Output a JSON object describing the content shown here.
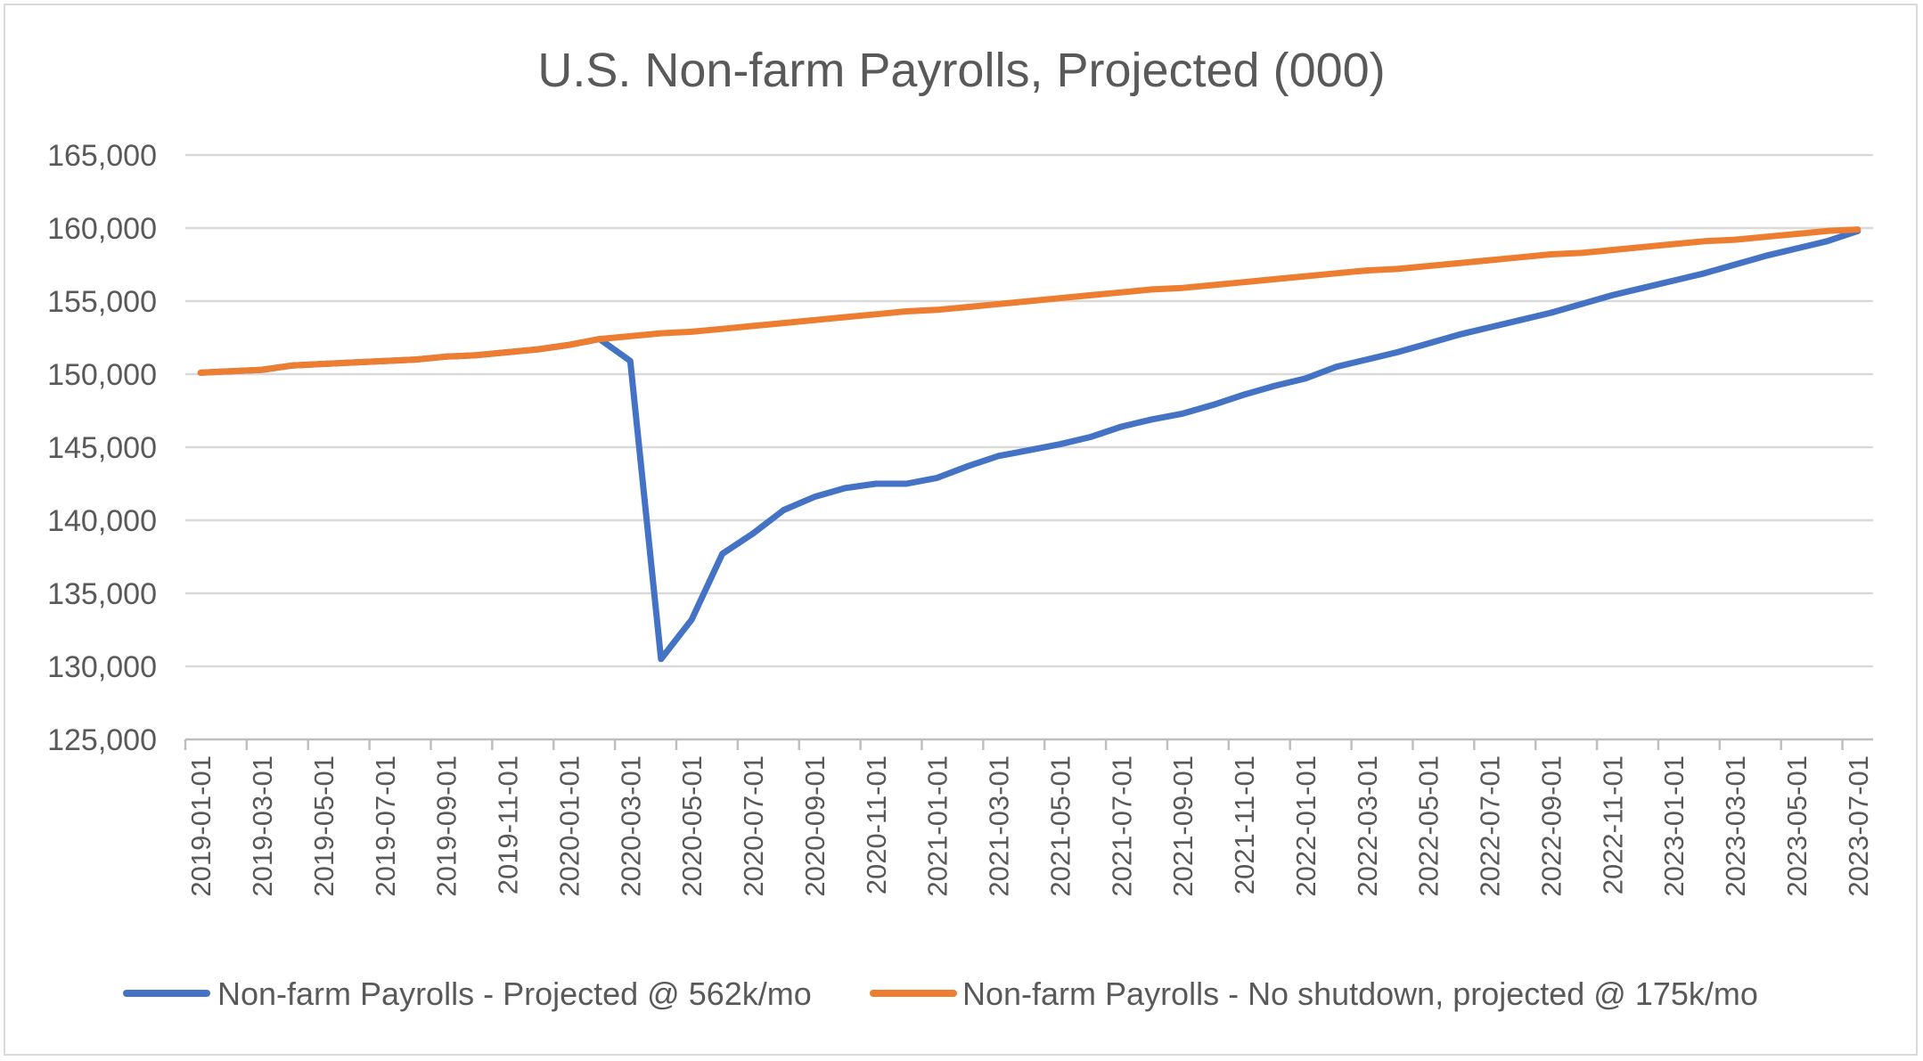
{
  "chart_data": {
    "type": "line",
    "title": "U.S. Non-farm Payrolls, Projected (000)",
    "xlabel": "",
    "ylabel": "",
    "ylim": [
      125000,
      165000
    ],
    "yticks": [
      "125,000",
      "130,000",
      "135,000",
      "140,000",
      "145,000",
      "150,000",
      "155,000",
      "160,000",
      "165,000"
    ],
    "ytick_values": [
      125000,
      130000,
      135000,
      140000,
      145000,
      150000,
      155000,
      160000,
      165000
    ],
    "xtick_labels": [
      "2019-01-01",
      "2019-03-01",
      "2019-05-01",
      "2019-07-01",
      "2019-09-01",
      "2019-11-01",
      "2020-01-01",
      "2020-03-01",
      "2020-05-01",
      "2020-07-01",
      "2020-09-01",
      "2020-11-01",
      "2021-01-01",
      "2021-03-01",
      "2021-05-01",
      "2021-07-01",
      "2021-09-01",
      "2021-11-01",
      "2022-01-01",
      "2022-03-01",
      "2022-05-01",
      "2022-07-01",
      "2022-09-01",
      "2022-11-01",
      "2023-01-01",
      "2023-03-01",
      "2023-05-01",
      "2023-07-01"
    ],
    "grid": true,
    "legend_position": "bottom",
    "x": [
      "2019-01-01",
      "2019-02-01",
      "2019-03-01",
      "2019-04-01",
      "2019-05-01",
      "2019-06-01",
      "2019-07-01",
      "2019-08-01",
      "2019-09-01",
      "2019-10-01",
      "2019-11-01",
      "2019-12-01",
      "2020-01-01",
      "2020-02-01",
      "2020-03-01",
      "2020-04-01",
      "2020-05-01",
      "2020-06-01",
      "2020-07-01",
      "2020-08-01",
      "2020-09-01",
      "2020-10-01",
      "2020-11-01",
      "2020-12-01",
      "2021-01-01",
      "2021-02-01",
      "2021-03-01",
      "2021-04-01",
      "2021-05-01",
      "2021-06-01",
      "2021-07-01",
      "2021-08-01",
      "2021-09-01",
      "2021-10-01",
      "2021-11-01",
      "2021-12-01",
      "2022-01-01",
      "2022-02-01",
      "2022-03-01",
      "2022-04-01",
      "2022-05-01",
      "2022-06-01",
      "2022-07-01",
      "2022-08-01",
      "2022-09-01",
      "2022-10-01",
      "2022-11-01",
      "2022-12-01",
      "2023-01-01",
      "2023-02-01",
      "2023-03-01",
      "2023-04-01",
      "2023-05-01",
      "2023-06-01",
      "2023-07-01"
    ],
    "series": [
      {
        "name": "Non-farm Payrolls - Projected @ 562k/mo",
        "color": "#4472C4",
        "values": [
          150100,
          150200,
          150300,
          150600,
          150700,
          150800,
          150900,
          151000,
          151200,
          151300,
          151500,
          151700,
          152000,
          152400,
          150900,
          130500,
          133200,
          137700,
          139100,
          140700,
          141600,
          142200,
          142500,
          142500,
          142900,
          143700,
          144400,
          144800,
          145200,
          145700,
          146400,
          146900,
          147300,
          147900,
          148600,
          149200,
          149700,
          150500,
          151000,
          151500,
          152100,
          152700,
          153200,
          153700,
          154200,
          154800,
          155400,
          155900,
          156400,
          156900,
          157500,
          158100,
          158600,
          159100,
          159800
        ]
      },
      {
        "name": "Non-farm Payrolls - No shutdown, projected @ 175k/mo",
        "color": "#ED7D31",
        "values": [
          150100,
          150200,
          150300,
          150600,
          150700,
          150800,
          150900,
          151000,
          151200,
          151300,
          151500,
          151700,
          152000,
          152400,
          152600,
          152800,
          152900,
          153100,
          153300,
          153500,
          153700,
          153900,
          154100,
          154300,
          154400,
          154600,
          154800,
          155000,
          155200,
          155400,
          155600,
          155800,
          155900,
          156100,
          156300,
          156500,
          156700,
          156900,
          157100,
          157200,
          157400,
          157600,
          157800,
          158000,
          158200,
          158300,
          158500,
          158700,
          158900,
          159100,
          159200,
          159400,
          159600,
          159800,
          159900
        ]
      }
    ]
  }
}
